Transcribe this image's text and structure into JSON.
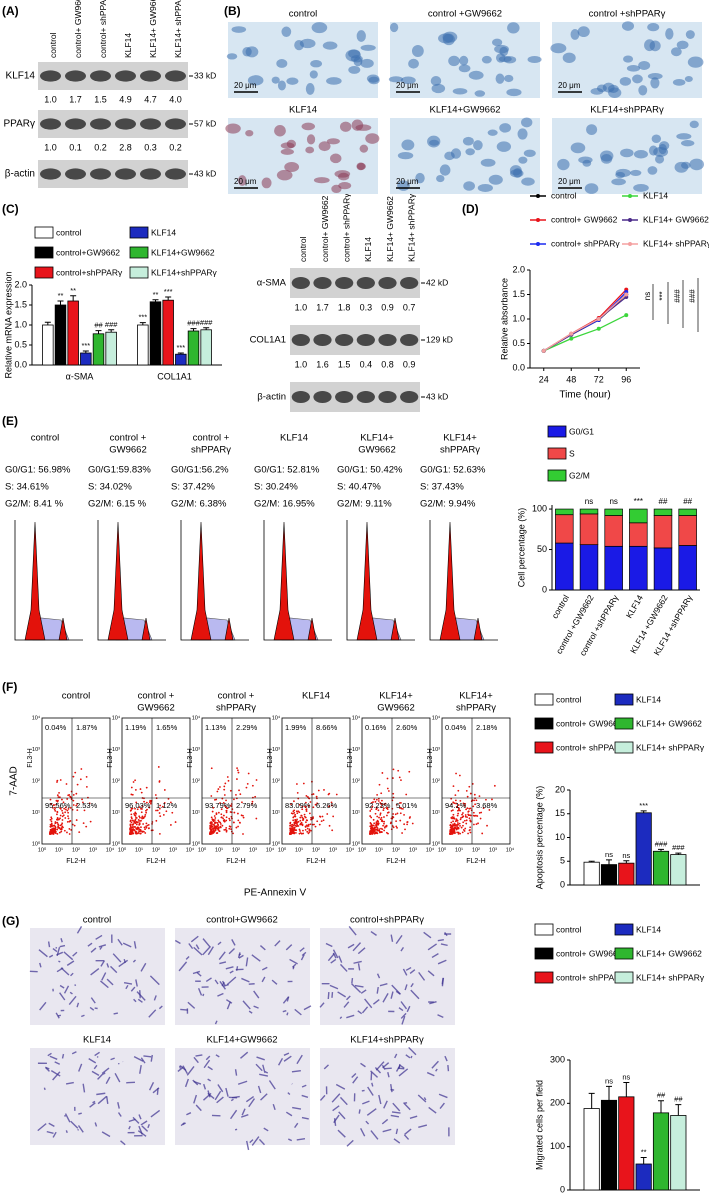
{
  "panel_labels": [
    "(A)",
    "(B)",
    "(C)",
    "(D)",
    "(E)",
    "(F)",
    "(G)"
  ],
  "blot_a": {
    "lanes": [
      "control",
      "control+ GW9662",
      "control+ shPPARγ",
      "KLF14",
      "KLF14+ GW9662",
      "KLF14+ shPPARγ"
    ],
    "rows": [
      {
        "name": "KLF14",
        "size": "33 kD",
        "ratios": [
          "1.0",
          "1.7",
          "1.5",
          "4.9",
          "4.7",
          "4.0"
        ]
      },
      {
        "name": "PPARγ",
        "size": "57 kD",
        "ratios": [
          "1.0",
          "0.1",
          "0.2",
          "2.8",
          "0.3",
          "0.2"
        ]
      },
      {
        "name": "β-actin",
        "size": "43 kD"
      }
    ]
  },
  "images_b": {
    "scale": "20 μm",
    "labels": [
      "control",
      "control +GW9662",
      "control +shPPARγ",
      "KLF14",
      "KLF14+GW9662",
      "KLF14+shPPARγ"
    ]
  },
  "blot_c": {
    "lanes": [
      "control",
      "control+ GW9662",
      "control+ shPPARγ",
      "KLF14",
      "KLF14+ GW9662",
      "KLF14+ shPPARγ"
    ],
    "rows": [
      {
        "name": "α-SMA",
        "size": "42 kD",
        "ratios": [
          "1.0",
          "1.7",
          "1.8",
          "0.3",
          "0.9",
          "0.7"
        ]
      },
      {
        "name": "COL1A1",
        "size": "129 kD",
        "ratios": [
          "1.0",
          "1.6",
          "1.5",
          "0.4",
          "0.8",
          "0.9"
        ]
      },
      {
        "name": "β-actin",
        "size": "43 kD"
      }
    ]
  },
  "flow_e": {
    "samples": [
      {
        "name": [
          "control"
        ],
        "stats": [
          "G0/G1: 56.98%",
          "S: 34.61%",
          "G2/M: 8.41 %"
        ]
      },
      {
        "name": [
          "control +",
          "GW9662"
        ],
        "stats": [
          "G0/G1:59.83%",
          "S: 34.02%",
          "G2/M: 6.15 %"
        ]
      },
      {
        "name": [
          "control +",
          "shPPARγ"
        ],
        "stats": [
          "G0/G1:56.2%",
          "S: 37.42%",
          "G2/M: 6.38%"
        ]
      },
      {
        "name": [
          "KLF14"
        ],
        "stats": [
          "G0/G1: 52.81%",
          "S: 30.24%",
          "G2/M: 16.95%"
        ]
      },
      {
        "name": [
          "KLF14+",
          "GW9662"
        ],
        "stats": [
          "G0/G1: 50.42%",
          "S: 40.47%",
          "G2/M: 9.11%"
        ]
      },
      {
        "name": [
          "KLF14+",
          "shPPARγ"
        ],
        "stats": [
          "G0/G1: 52.63%",
          "S: 37.43%",
          "G2/M: 9.94%"
        ]
      }
    ]
  },
  "flow_f": {
    "x_title": "PE-Annexin V",
    "y_title": "7-AAD",
    "x_label": "FL2-H",
    "y_label": "FL3-H",
    "ticks": [
      "10⁰",
      "10¹",
      "10²",
      "10³",
      "10⁴"
    ],
    "samples": [
      {
        "name": [
          "control"
        ],
        "quadrants": [
          "0.04%",
          "1.87%",
          "95.56%",
          "2.53%"
        ]
      },
      {
        "name": [
          "control +",
          "GW9662"
        ],
        "quadrants": [
          "1.19%",
          "1.65%",
          "96.03%",
          "1.12%"
        ]
      },
      {
        "name": [
          "control +",
          "shPPARγ"
        ],
        "quadrants": [
          "1.13%",
          "2.29%",
          "93.79%",
          "2.79%"
        ]
      },
      {
        "name": [
          "KLF14"
        ],
        "quadrants": [
          "1.99%",
          "8.66%",
          "83.09%",
          "6.26%"
        ]
      },
      {
        "name": [
          "KLF14+",
          "GW9662"
        ],
        "quadrants": [
          "0.16%",
          "2.60%",
          "92.23%",
          "5.01%"
        ]
      },
      {
        "name": [
          "KLF14+",
          "shPPARγ"
        ],
        "quadrants": [
          "0.04%",
          "2.18%",
          "94.1%",
          "3.68%"
        ]
      }
    ]
  },
  "images_g": {
    "labels": [
      "control",
      "control+GW9662",
      "control+shPPARγ",
      "KLF14",
      "KLF14+GW9662",
      "KLF14+shPPARγ"
    ]
  },
  "chart_data": [
    {
      "type": "bar",
      "y_label": "Relative mRNA expression",
      "categories": [
        "α-SMA",
        "COL1A1"
      ],
      "ylim": [
        0,
        2
      ],
      "yticks": [
        {
          "value": 0,
          "label": "0.0"
        },
        {
          "value": 0.5,
          "label": "0.5"
        },
        {
          "value": 1,
          "label": "1.0"
        },
        {
          "value": 1.5,
          "label": "1.5"
        },
        {
          "value": 2,
          "label": "2.0"
        }
      ],
      "series": [
        {
          "name": "control",
          "color": "#ffffff",
          "values": [
            1.0,
            1.0
          ],
          "errors": [
            0.07,
            0.06
          ],
          "sig": [
            null,
            "***"
          ]
        },
        {
          "name": "control+GW9662",
          "color": "#000000",
          "values": [
            1.5,
            1.58
          ],
          "errors": [
            0.1,
            0.05
          ],
          "sig": [
            "**",
            "**"
          ]
        },
        {
          "name": "control+shPPARγ",
          "color": "#e8141b",
          "values": [
            1.6,
            1.62
          ],
          "errors": [
            0.13,
            0.08
          ],
          "sig": [
            "**",
            "***"
          ]
        },
        {
          "name": "KLF14",
          "color": "#1c2bbf",
          "values": [
            0.3,
            0.27
          ],
          "errors": [
            0.05,
            0.03
          ],
          "sig": [
            "***",
            "***"
          ]
        },
        {
          "name": "KLF14+GW9662",
          "color": "#2fb62f",
          "values": [
            0.78,
            0.85
          ],
          "errors": [
            0.08,
            0.06
          ],
          "sig": [
            "##",
            "###"
          ]
        },
        {
          "name": "KLF14+shPPARγ",
          "color": "#c6eedc",
          "values": [
            0.82,
            0.88
          ],
          "errors": [
            0.06,
            0.05
          ],
          "sig": [
            "###",
            "###"
          ]
        }
      ]
    },
    {
      "type": "line",
      "x_label": "Time (hour)",
      "y_label": "Relative absorbance",
      "x": [
        24,
        48,
        72,
        96
      ],
      "xlim": [
        12,
        108
      ],
      "xticks": [
        24,
        48,
        72,
        96
      ],
      "ylim": [
        0,
        2
      ],
      "yticks": [
        {
          "value": 0,
          "label": "0.0"
        },
        {
          "value": 0.5,
          "label": "0.5"
        },
        {
          "value": 1,
          "label": "1.0"
        },
        {
          "value": 1.5,
          "label": "1.5"
        },
        {
          "value": 2,
          "label": "2.0"
        }
      ],
      "series": [
        {
          "name": "control",
          "color": "#000000",
          "values": [
            0.35,
            0.68,
            0.98,
            1.5
          ]
        },
        {
          "name": "control+ GW9662",
          "color": "#e8141b",
          "values": [
            0.35,
            0.7,
            1.02,
            1.6
          ]
        },
        {
          "name": "control+ shPPARγ",
          "color": "#1c2bf0",
          "values": [
            0.35,
            0.68,
            0.98,
            1.55
          ]
        },
        {
          "name": "KLF14",
          "color": "#3cd63c",
          "values": [
            0.35,
            0.6,
            0.8,
            1.08
          ]
        },
        {
          "name": "KLF14+ GW9662",
          "color": "#4b2a8a",
          "values": [
            0.35,
            0.68,
            1.0,
            1.45
          ]
        },
        {
          "name": "KLF14+ shPPARγ",
          "color": "#f4a0a0",
          "values": [
            0.35,
            0.7,
            1.0,
            1.5
          ]
        }
      ],
      "annotations": [
        "ns",
        "***",
        "###",
        "###"
      ]
    },
    {
      "type": "stacked_bar",
      "y_label": "Cell percentage (%)",
      "categories": [
        "control",
        "control +GW9662",
        "control +shPPARγ",
        "KLF14",
        "KLF14 +GW9662",
        "KLF14 +shPPARγ"
      ],
      "ylim": [
        0,
        105
      ],
      "yticks": [
        0,
        50,
        100
      ],
      "series": [
        {
          "name": "G0/G1",
          "color": "#1a1ae6",
          "values": [
            58,
            56,
            54,
            54,
            52,
            55
          ]
        },
        {
          "name": "S",
          "color": "#f04848",
          "values": [
            35,
            38,
            38,
            29,
            40,
            37
          ]
        },
        {
          "name": "G2/M",
          "color": "#33cc33",
          "values": [
            7,
            6,
            8,
            17,
            8,
            8
          ]
        }
      ],
      "sig": [
        null,
        "ns",
        "ns",
        "***",
        "##",
        "##"
      ]
    },
    {
      "type": "bar",
      "y_label": "Apoptosis percentage (%)",
      "ylim": [
        0,
        20
      ],
      "yticks": [
        0,
        5,
        10,
        15,
        20
      ],
      "series": [
        {
          "name": "control",
          "color": "#ffffff",
          "values": [
            4.8
          ],
          "errors": [
            0.2
          ],
          "sig": [
            null
          ]
        },
        {
          "name": "control+ GW9662",
          "color": "#000000",
          "values": [
            4.3
          ],
          "errors": [
            1.0
          ],
          "sig": [
            "ns"
          ]
        },
        {
          "name": "control+ shPPARγ",
          "color": "#e8141b",
          "values": [
            4.6
          ],
          "errors": [
            0.5
          ],
          "sig": [
            "ns"
          ]
        },
        {
          "name": "KLF14",
          "color": "#1c2bbf",
          "values": [
            15.2
          ],
          "errors": [
            0.4
          ],
          "sig": [
            "***"
          ]
        },
        {
          "name": "KLF14+ GW9662",
          "color": "#2fb62f",
          "values": [
            7.1
          ],
          "errors": [
            0.4
          ],
          "sig": [
            "###"
          ]
        },
        {
          "name": "KLF14+ shPPARγ",
          "color": "#c6eedc",
          "values": [
            6.4
          ],
          "errors": [
            0.3
          ],
          "sig": [
            "###"
          ]
        }
      ]
    },
    {
      "type": "bar",
      "y_label": "Migrated cells per field",
      "ylim": [
        0,
        300
      ],
      "yticks": [
        0,
        100,
        200,
        300
      ],
      "series": [
        {
          "name": "control",
          "color": "#ffffff",
          "values": [
            188
          ],
          "errors": [
            35
          ],
          "sig": [
            null
          ]
        },
        {
          "name": "control+ GW9662",
          "color": "#000000",
          "values": [
            207
          ],
          "errors": [
            32
          ],
          "sig": [
            "ns"
          ]
        },
        {
          "name": "control+ shPPARγ",
          "color": "#e8141b",
          "values": [
            215
          ],
          "errors": [
            33
          ],
          "sig": [
            "ns"
          ]
        },
        {
          "name": "KLF14",
          "color": "#1c2bbf",
          "values": [
            60
          ],
          "errors": [
            15
          ],
          "sig": [
            "**"
          ]
        },
        {
          "name": "KLF14+ GW9662",
          "color": "#2fb62f",
          "values": [
            178
          ],
          "errors": [
            28
          ],
          "sig": [
            "##"
          ]
        },
        {
          "name": "KLF14+ shPPARγ",
          "color": "#c6eedc",
          "values": [
            172
          ],
          "errors": [
            25
          ],
          "sig": [
            "##"
          ]
        }
      ]
    }
  ]
}
